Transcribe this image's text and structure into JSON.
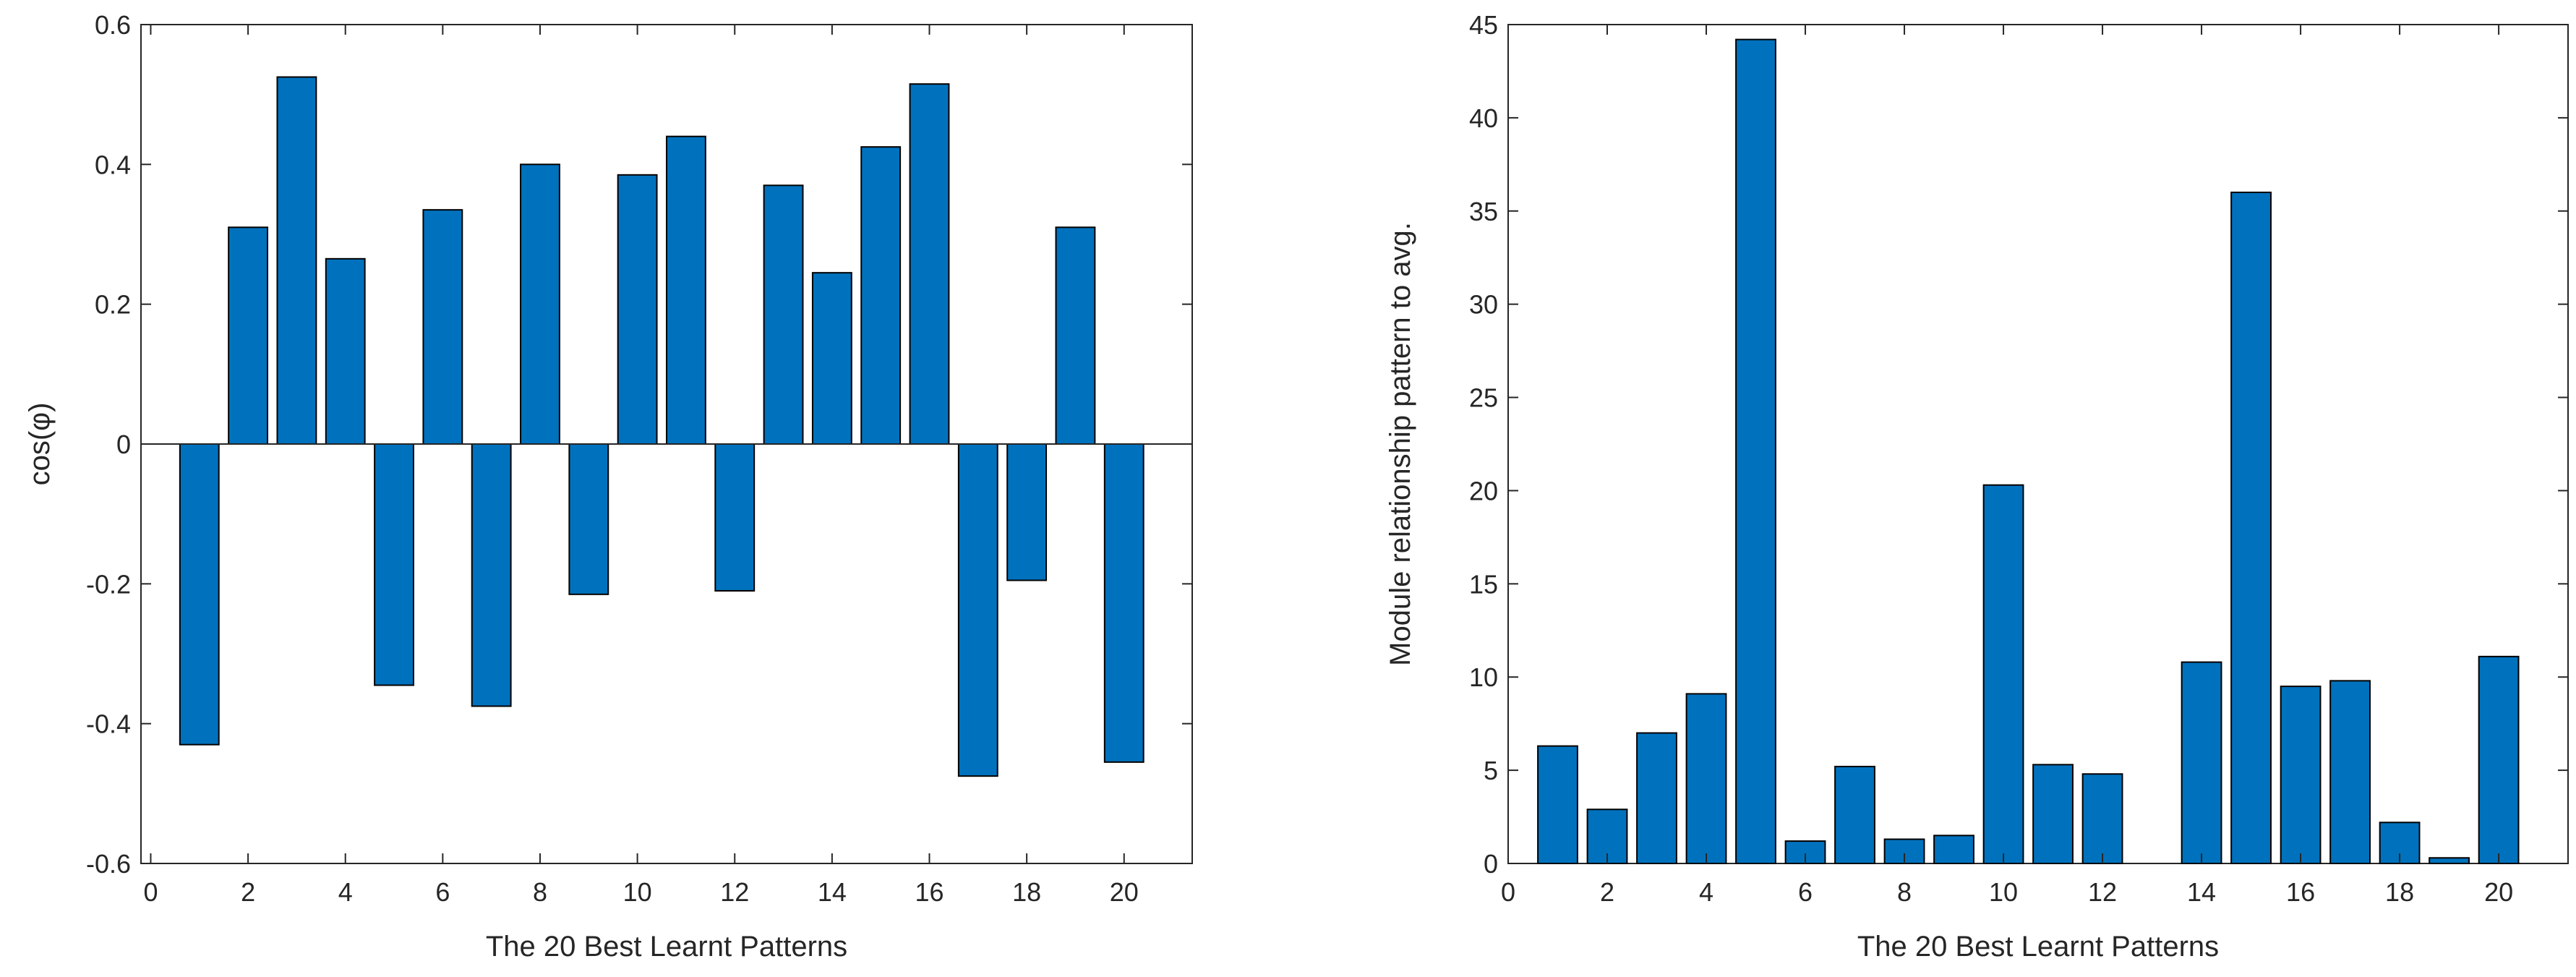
{
  "chart_data": [
    {
      "type": "bar",
      "title": "",
      "xlabel": "The 20 Best Learnt Patterns",
      "ylabel": "cos(φ)",
      "x": [
        1,
        2,
        3,
        4,
        5,
        6,
        7,
        8,
        9,
        10,
        11,
        12,
        13,
        14,
        15,
        16,
        17,
        18,
        19,
        20
      ],
      "values": [
        -0.43,
        0.31,
        0.525,
        0.265,
        -0.345,
        0.335,
        -0.375,
        0.4,
        -0.215,
        0.385,
        0.44,
        -0.21,
        0.37,
        0.245,
        0.425,
        0.515,
        -0.475,
        -0.195,
        0.31,
        -0.455
      ],
      "xlim": [
        -0.2,
        21.4
      ],
      "ylim": [
        -0.6,
        0.6
      ],
      "xticks": [
        0,
        2,
        4,
        6,
        8,
        10,
        12,
        14,
        16,
        18,
        20
      ],
      "xtick_labels": [
        "0",
        "2",
        "4",
        "6",
        "8",
        "10",
        "12",
        "14",
        "16",
        "18",
        "20"
      ],
      "yticks": [
        -0.6,
        -0.4,
        -0.2,
        0,
        0.2,
        0.4,
        0.6
      ],
      "ytick_labels": [
        "-0.6",
        "-0.4",
        "-0.2",
        "0",
        "0.2",
        "0.4",
        "0.6"
      ],
      "bar_color": "#0072BD",
      "grid": false
    },
    {
      "type": "bar",
      "title": "",
      "xlabel": "The 20 Best Learnt Patterns",
      "ylabel": "Module relationship pattern to avg.",
      "x": [
        1,
        2,
        3,
        4,
        5,
        6,
        7,
        8,
        9,
        10,
        11,
        12,
        13,
        14,
        15,
        16,
        17,
        18,
        19,
        20
      ],
      "values": [
        6.3,
        2.9,
        7.0,
        9.1,
        44.2,
        1.2,
        5.2,
        1.3,
        1.5,
        20.3,
        5.3,
        4.8,
        0,
        10.8,
        36.0,
        9.5,
        9.8,
        2.2,
        0.3,
        11.1
      ],
      "xlim": [
        0,
        21.4
      ],
      "ylim": [
        0,
        45
      ],
      "xticks": [
        0,
        2,
        4,
        6,
        8,
        10,
        12,
        14,
        16,
        18,
        20
      ],
      "xtick_labels": [
        "0",
        "2",
        "4",
        "6",
        "8",
        "10",
        "12",
        "14",
        "16",
        "18",
        "20"
      ],
      "yticks": [
        0,
        5,
        10,
        15,
        20,
        25,
        30,
        35,
        40,
        45
      ],
      "ytick_labels": [
        "0",
        "5",
        "10",
        "15",
        "20",
        "25",
        "30",
        "35",
        "40",
        "45"
      ],
      "bar_color": "#0072BD",
      "grid": false
    }
  ]
}
